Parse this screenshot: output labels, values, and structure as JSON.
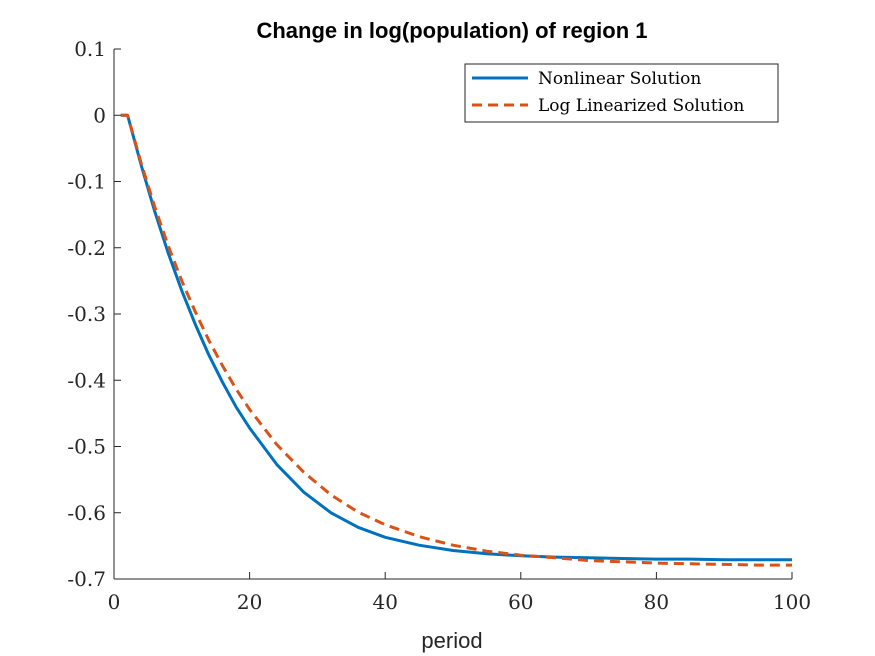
{
  "chart_data": {
    "type": "line",
    "title": "Change in log(population) of region 1",
    "xlabel": "period",
    "ylabel": "",
    "xlim": [
      0,
      100
    ],
    "ylim": [
      -0.7,
      0.1
    ],
    "xticks": [
      0,
      20,
      40,
      60,
      80,
      100
    ],
    "xtick_labels": [
      "0",
      "20",
      "40",
      "60",
      "80",
      "100"
    ],
    "yticks": [
      0.1,
      0,
      -0.1,
      -0.2,
      -0.3,
      -0.4,
      -0.5,
      -0.6,
      -0.7
    ],
    "ytick_labels": [
      "0.1",
      "0",
      "-0.1",
      "-0.2",
      "-0.3",
      "-0.4",
      "-0.5",
      "-0.6",
      "-0.7"
    ],
    "grid": false,
    "legend_position": "top-right",
    "series": [
      {
        "name": "Nonlinear Solution",
        "color": "#0072BD",
        "style": "solid",
        "x": [
          1,
          2,
          4,
          6,
          8,
          10,
          12,
          14,
          16,
          18,
          20,
          24,
          28,
          32,
          36,
          40,
          45,
          50,
          55,
          60,
          65,
          70,
          75,
          80,
          85,
          90,
          95,
          100
        ],
        "y": [
          0,
          0,
          -0.075,
          -0.145,
          -0.208,
          -0.265,
          -0.316,
          -0.362,
          -0.403,
          -0.44,
          -0.472,
          -0.527,
          -0.569,
          -0.6,
          -0.622,
          -0.637,
          -0.649,
          -0.657,
          -0.662,
          -0.665,
          -0.667,
          -0.668,
          -0.669,
          -0.67,
          -0.67,
          -0.671,
          -0.671,
          -0.671
        ]
      },
      {
        "name": "Log Linearized Solution",
        "color": "#D95319",
        "style": "dashed",
        "x": [
          1,
          2,
          4,
          6,
          8,
          10,
          12,
          14,
          16,
          18,
          20,
          24,
          28,
          32,
          36,
          40,
          45,
          50,
          55,
          60,
          65,
          70,
          75,
          80,
          85,
          90,
          95,
          100
        ],
        "y": [
          0,
          0,
          -0.072,
          -0.138,
          -0.197,
          -0.25,
          -0.297,
          -0.34,
          -0.378,
          -0.413,
          -0.444,
          -0.497,
          -0.539,
          -0.573,
          -0.599,
          -0.618,
          -0.636,
          -0.649,
          -0.658,
          -0.664,
          -0.668,
          -0.672,
          -0.674,
          -0.676,
          -0.677,
          -0.678,
          -0.679,
          -0.679
        ]
      }
    ]
  }
}
